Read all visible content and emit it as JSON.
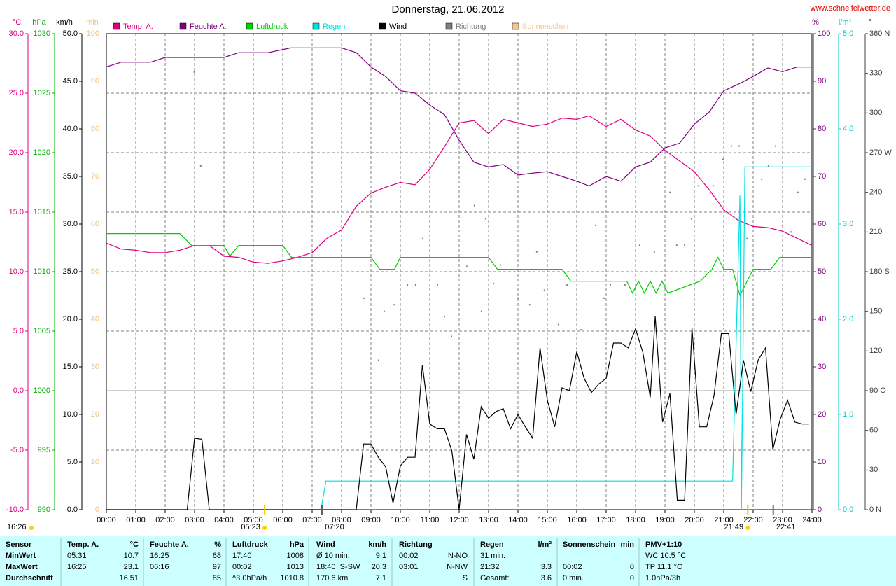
{
  "chart_data": {
    "type": "multi-axis-line",
    "title": "Donnerstag, 21.06.2012",
    "source": "www.schneifelwetter.de",
    "xlim": [
      0,
      24
    ],
    "xticks": [
      {
        "value": 0,
        "label": "00:00"
      },
      {
        "value": 1,
        "label": "01:00"
      },
      {
        "value": 2,
        "label": "02:00"
      },
      {
        "value": 3,
        "label": "03:00"
      },
      {
        "value": 4,
        "label": "04:00"
      },
      {
        "value": 5,
        "label": "05:00"
      },
      {
        "value": 6,
        "label": "06:00"
      },
      {
        "value": 7,
        "label": "07:00"
      },
      {
        "value": 8,
        "label": "08:00"
      },
      {
        "value": 9,
        "label": "09:00"
      },
      {
        "value": 10,
        "label": "10:00"
      },
      {
        "value": 11,
        "label": "11:00"
      },
      {
        "value": 12,
        "label": "12:00"
      },
      {
        "value": 13,
        "label": "13:00"
      },
      {
        "value": 14,
        "label": "14:00"
      },
      {
        "value": 15,
        "label": "15:00"
      },
      {
        "value": 16,
        "label": "16:00"
      },
      {
        "value": 17,
        "label": "17:00"
      },
      {
        "value": 18,
        "label": "18:00"
      },
      {
        "value": 19,
        "label": "19:00"
      },
      {
        "value": 20,
        "label": "20:00"
      },
      {
        "value": 21,
        "label": "21:00"
      },
      {
        "value": 22,
        "label": "22:00"
      },
      {
        "value": 23,
        "label": "23:00"
      },
      {
        "value": 24,
        "label": "24:00"
      }
    ],
    "grid": true,
    "axes": {
      "temp": {
        "label": "°C",
        "color": "#e0007f",
        "lim": [
          -10,
          30
        ],
        "ticks": [
          {
            "value": -10,
            "label": "-10.0"
          },
          {
            "value": -5,
            "label": "-5.0"
          },
          {
            "value": 0,
            "label": "0.0"
          },
          {
            "value": 5,
            "label": "5.0"
          },
          {
            "value": 10,
            "label": "10.0"
          },
          {
            "value": 15,
            "label": "15.0"
          },
          {
            "value": 20,
            "label": "20.0"
          },
          {
            "value": 25,
            "label": "25.0"
          },
          {
            "value": 30,
            "label": "30.0"
          }
        ]
      },
      "hpa": {
        "label": "hPa",
        "color": "#00b000",
        "lim": [
          990,
          1030
        ],
        "ticks": [
          990,
          995,
          1000,
          1005,
          1010,
          1015,
          1020,
          1025,
          1030
        ]
      },
      "kmh": {
        "label": "km/h",
        "color": "#000000",
        "lim": [
          0,
          50
        ],
        "ticks": [
          {
            "value": 0,
            "label": "0.0"
          },
          {
            "value": 5,
            "label": "5.0"
          },
          {
            "value": 10,
            "label": "10.0"
          },
          {
            "value": 15,
            "label": "15.0"
          },
          {
            "value": 20,
            "label": "20.0"
          },
          {
            "value": 25,
            "label": "25.0"
          },
          {
            "value": 30,
            "label": "30.0"
          },
          {
            "value": 35,
            "label": "35.0"
          },
          {
            "value": 40,
            "label": "40.0"
          },
          {
            "value": 45,
            "label": "45.0"
          },
          {
            "value": 50,
            "label": "50.0"
          }
        ]
      },
      "min": {
        "label": "min",
        "color": "#f0c080",
        "lim": [
          0,
          100
        ],
        "ticks": [
          0,
          10,
          20,
          30,
          40,
          50,
          60,
          70,
          80,
          90,
          100
        ]
      },
      "pct": {
        "label": "%",
        "color": "#800080",
        "lim": [
          0,
          100
        ],
        "ticks": [
          0,
          10,
          20,
          30,
          40,
          50,
          60,
          70,
          80,
          90,
          100
        ]
      },
      "rain": {
        "label": "l/m²",
        "color": "#00c8c8",
        "lim": [
          0,
          5
        ],
        "ticks": [
          {
            "value": 0,
            "label": "0.0"
          },
          {
            "value": 1,
            "label": "1.0"
          },
          {
            "value": 2,
            "label": "2.0"
          },
          {
            "value": 3,
            "label": "3.0"
          },
          {
            "value": 4,
            "label": "4.0"
          },
          {
            "value": 5,
            "label": "5.0"
          }
        ]
      },
      "deg": {
        "label": "°",
        "color": "#404040",
        "lim": [
          0,
          360
        ],
        "ticks": [
          {
            "value": 0,
            "label": "0 N"
          },
          30,
          60,
          {
            "value": 90,
            "label": "90 O"
          },
          120,
          150,
          {
            "value": 180,
            "label": "180 S"
          },
          210,
          240,
          {
            "value": 270,
            "label": "270 W"
          },
          300,
          330,
          {
            "value": 360,
            "label": "360 N"
          }
        ]
      }
    },
    "series": [
      {
        "name": "Temp. A.",
        "color": "#e0007f",
        "axis": "temp",
        "x": [
          0,
          0.5,
          1,
          1.5,
          2,
          2.5,
          3,
          3.5,
          4,
          4.5,
          5,
          5.5,
          6,
          6.5,
          7,
          7.5,
          8,
          8.5,
          9,
          9.5,
          10,
          10.5,
          11,
          11.5,
          12,
          12.5,
          13,
          13.5,
          14,
          14.5,
          15,
          15.5,
          16,
          16.42,
          17,
          17.5,
          18,
          18.5,
          19,
          19.5,
          20,
          20.5,
          21,
          21.5,
          22,
          22.5,
          23,
          23.5,
          24
        ],
        "values": [
          12.4,
          11.9,
          11.8,
          11.6,
          11.6,
          11.8,
          12.2,
          12.2,
          11.3,
          11.2,
          10.8,
          10.7,
          10.9,
          11.2,
          11.6,
          12.8,
          13.5,
          15.5,
          16.6,
          17.1,
          17.5,
          17.3,
          18.6,
          20.5,
          22.5,
          22.7,
          21.6,
          22.8,
          22.5,
          22.2,
          22.4,
          22.9,
          22.8,
          23.1,
          22.2,
          22.8,
          21.9,
          21.4,
          20.2,
          19.3,
          18.4,
          16.9,
          15.2,
          14.3,
          13.8,
          13.7,
          13.4,
          12.8,
          12.2
        ]
      },
      {
        "name": "Feuchte A.",
        "color": "#800080",
        "axis": "pct",
        "x": [
          0,
          0.5,
          1,
          1.5,
          2,
          2.5,
          3,
          3.5,
          4,
          4.5,
          5,
          5.5,
          6.27,
          7,
          8,
          8.5,
          9,
          9.5,
          10,
          10.5,
          11,
          11.5,
          12,
          12.5,
          13,
          13.5,
          14,
          14.5,
          15,
          15.5,
          16,
          16.42,
          17,
          17.5,
          18,
          18.5,
          19,
          19.5,
          20,
          20.5,
          21,
          21.5,
          22,
          22.5,
          23,
          23.5,
          24
        ],
        "values": [
          93,
          94,
          94,
          94,
          95,
          95,
          95,
          95,
          95,
          96,
          96,
          96,
          97,
          97,
          97,
          96,
          93,
          91,
          88,
          87.5,
          85,
          83,
          77.6,
          73,
          72,
          72.5,
          70.3,
          70.7,
          71,
          70,
          69,
          68,
          70,
          69,
          72,
          73,
          76,
          77,
          81,
          83.5,
          88,
          89.4,
          91,
          92.8,
          92,
          93,
          93
        ]
      },
      {
        "name": "Luftdruck",
        "color": "#00cc00",
        "axis": "hpa",
        "x": [
          0,
          2.5,
          2.9,
          4,
          4.2,
          4.5,
          6,
          6.3,
          9,
          9.3,
          9.8,
          10,
          13,
          13.3,
          15.5,
          15.8,
          17.7,
          17.9,
          18.1,
          18.3,
          18.5,
          18.7,
          18.9,
          19.1,
          20.2,
          20.6,
          20.8,
          21.0,
          21.3,
          21.55,
          22,
          22.6,
          22.9,
          24
        ],
        "values": [
          1013.2,
          1013.2,
          1012.2,
          1012.2,
          1011.3,
          1012.2,
          1012.2,
          1011.2,
          1011.2,
          1010.2,
          1010.2,
          1011.2,
          1011.2,
          1010.2,
          1010.2,
          1009.2,
          1009.2,
          1008.2,
          1009.2,
          1008.2,
          1009.2,
          1008.2,
          1009.2,
          1008.2,
          1009.2,
          1010.2,
          1011.2,
          1010.2,
          1010.2,
          1008,
          1010.2,
          1010.2,
          1011.2,
          1011.2
        ]
      },
      {
        "name": "Regen",
        "color": "#00e0e0",
        "axis": "rain",
        "x": [
          0,
          7.3,
          7.47,
          21.3,
          21.55,
          21.6,
          21.72,
          24
        ],
        "values": [
          0,
          0,
          0.3,
          0.3,
          3.3,
          0,
          3.6,
          3.6
        ]
      },
      {
        "name": "Wind",
        "color": "#000000",
        "axis": "kmh",
        "x": [
          0,
          2.75,
          3,
          3.25,
          3.5,
          8.5,
          8.75,
          9,
          9.25,
          9.5,
          9.75,
          10,
          10.25,
          10.5,
          10.75,
          11,
          11.25,
          11.5,
          11.75,
          12,
          12.25,
          12.5,
          12.75,
          13,
          13.25,
          13.5,
          13.75,
          14,
          14.25,
          14.5,
          14.75,
          15,
          15.25,
          15.5,
          15.75,
          16,
          16.25,
          16.5,
          16.75,
          17,
          17.25,
          17.5,
          17.75,
          18,
          18.25,
          18.5,
          18.67,
          18.92,
          19.17,
          19.42,
          19.67,
          19.92,
          20.17,
          20.42,
          20.67,
          20.92,
          21.17,
          21.42,
          21.67,
          21.92,
          22.17,
          22.42,
          22.67,
          22.92,
          23.17,
          23.42,
          23.67,
          23.9
        ],
        "values": [
          0,
          0,
          7.5,
          7.4,
          0,
          0,
          6.9,
          6.9,
          5.5,
          4.5,
          0.7,
          4.6,
          5.5,
          5.5,
          15.2,
          9,
          8.5,
          8.5,
          6.2,
          0,
          7.9,
          5.3,
          10.8,
          9.6,
          10.3,
          10.6,
          8.5,
          10,
          8.7,
          7.5,
          17,
          11.5,
          8.7,
          12.8,
          12.5,
          16.6,
          13.8,
          12.3,
          13.2,
          13.8,
          17.5,
          17.5,
          17,
          19,
          16.5,
          11.8,
          20.3,
          9.2,
          12.2,
          1,
          1,
          19.1,
          8.7,
          8.7,
          12,
          18.5,
          18.5,
          10,
          15.7,
          12.4,
          15.7,
          17,
          6.3,
          9.5,
          11.5,
          9.2,
          9,
          9
        ]
      },
      {
        "name": "Richtung",
        "color": "#808080",
        "axis": "deg",
        "mark": "dots",
        "x": [
          3.21,
          2.99,
          8.76,
          9.26,
          9.45,
          9.79,
          10.24,
          10.52,
          10.76,
          11.26,
          11.5,
          11.74,
          12.26,
          12.52,
          12.76,
          12.9,
          13.17,
          13.4,
          14.0,
          14.4,
          14.64,
          14.9,
          15.38,
          15.67,
          16.14,
          16.64,
          16.93,
          17.14,
          17.64,
          18.14,
          18.64,
          19.17,
          19.4,
          19.67,
          19.9,
          20.14,
          20.64,
          20.98,
          21.26,
          21.52,
          21.79,
          22.29,
          22.52,
          22.76,
          23.0,
          23.29,
          23.52,
          23.76
        ],
        "values": [
          260,
          331,
          160,
          113,
          150,
          155,
          170,
          170,
          205,
          170,
          146,
          131,
          184,
          230,
          150,
          220,
          171,
          185,
          160,
          155,
          195,
          166,
          140,
          170,
          136,
          215,
          160,
          170,
          170,
          200,
          195,
          240,
          200,
          200,
          220,
          245,
          245,
          265,
          275,
          275,
          205,
          250,
          260,
          275,
          215,
          210,
          240,
          250
        ]
      },
      {
        "name": "Sonnenschein",
        "color": "#f0c890",
        "axis": "min"
      }
    ],
    "annotations": [
      {
        "label": "16:26",
        "place": "corner"
      },
      {
        "label": "05:23",
        "place": "sun"
      },
      {
        "label": "07:20",
        "place": "time"
      },
      {
        "label": "21:49",
        "place": "sun"
      },
      {
        "label": "22:41",
        "place": "time"
      }
    ]
  },
  "table": {
    "columns": [
      {
        "name": "Sensor"
      },
      {
        "name": "Temp. A.",
        "unit": "°C"
      },
      {
        "name": "Feuchte A.",
        "unit": "%"
      },
      {
        "name": "Luftdruck",
        "unit": "hPa"
      },
      {
        "name": "Wind",
        "unit": "km/h"
      },
      {
        "name": "Richtung"
      },
      {
        "name": "Regen",
        "unit": "l/m²"
      },
      {
        "name": "Sonnenschein",
        "unit": "min"
      },
      {
        "name": "PMV+1:10"
      }
    ],
    "rows": [
      {
        "label": "MinWert",
        "cells": [
          {
            "l": "05:31",
            "r": "10.7"
          },
          {
            "l": "16:25",
            "r": "68"
          },
          {
            "l": "17:40",
            "r": "1008"
          },
          {
            "l": "Ø 10 min.",
            "r": "9.1"
          },
          {
            "l": "00:02",
            "r": "N-NO"
          },
          {
            "l": "31 min."
          },
          {},
          {
            "l": "WC 10.5 °C"
          }
        ]
      },
      {
        "label": "MaxWert",
        "cells": [
          {
            "l": "16:25",
            "r": "23.1"
          },
          {
            "l": "06:16",
            "r": "97"
          },
          {
            "l": "00:02",
            "r": "1013"
          },
          {
            "l": "18:40",
            "m": "S-SW",
            "r": "20.3"
          },
          {
            "l": "03:01",
            "r": "N-NW"
          },
          {
            "l": "21:32",
            "r": "3.3"
          },
          {
            "l": "00:02",
            "r": "0"
          },
          {
            "l": "TP 11.1 °C"
          }
        ]
      },
      {
        "label": "Durchschnitt",
        "cells": [
          {
            "r": "16.51"
          },
          {
            "r": "85"
          },
          {
            "l": "^3.0hPa/h",
            "r": "1010.8"
          },
          {
            "l": "170.6 km",
            "r": "7.1"
          },
          {
            "r": "S"
          },
          {
            "l": "Gesamt:",
            "r": "3.6"
          },
          {
            "l": "0 min.",
            "r": "0"
          },
          {
            "l": "1.0hPa/3h"
          }
        ]
      }
    ]
  }
}
